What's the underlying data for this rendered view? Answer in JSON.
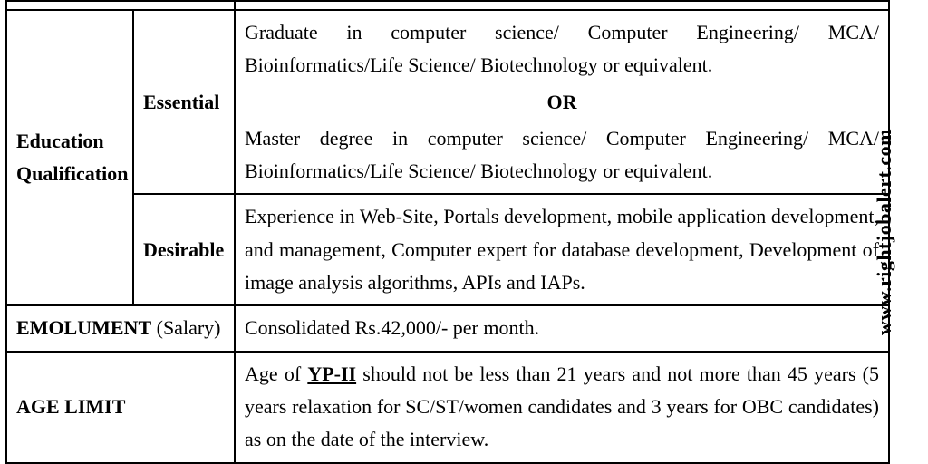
{
  "watermark": "www.rightjobalert.com",
  "table": {
    "eduq_label": "Education Qualification",
    "essential_label": "Essential",
    "essential_para1": "Graduate in computer science/ Computer Engineering/ MCA/ Bioinformatics/Life Science/ Biotechnology or equivalent.",
    "essential_or": "OR",
    "essential_para2": "Master degree in computer science/ Computer Engineering/ MCA/ Bioinformatics/Life Science/ Biotechnology or equivalent.",
    "desirable_label": "Desirable",
    "desirable_text": "Experience in Web-Site, Portals development, mobile application development, and management, Computer expert for database development, Development of image analysis algorithms, APIs and IAPs.",
    "emolument_label_bold": "EMOLUMENT",
    "emolument_label_paren": " (Salary)",
    "emolument_value": "Consolidated Rs.42,000/- per month.",
    "age_label": "AGE LIMIT",
    "age_prefix": "Age of ",
    "age_yp": "YP-II",
    "age_suffix": " should not be less than 21 years and not more than 45 years (5 years relaxation for SC/ST/women candidates and 3 years for OBC candidates) as on the date of the interview."
  }
}
